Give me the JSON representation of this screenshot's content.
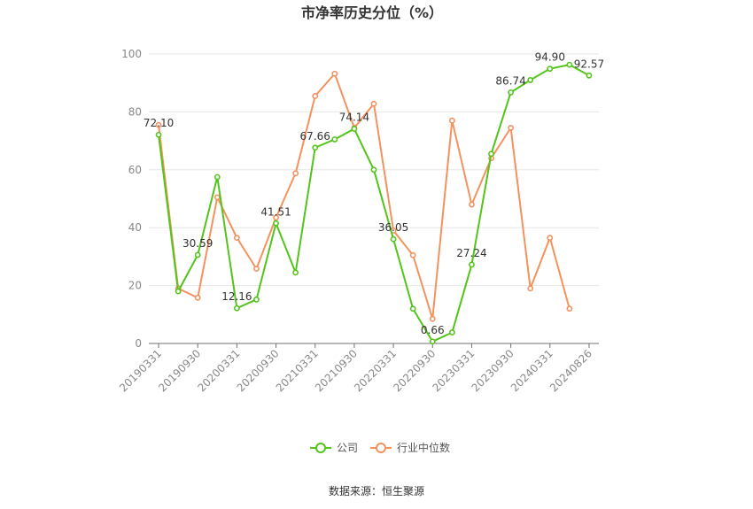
{
  "chart_data": {
    "type": "line",
    "title": "市净率历史分位（%）",
    "source": "数据来源：恒生聚源",
    "ylim": [
      0,
      100
    ],
    "yticks": [
      0,
      20,
      40,
      60,
      80,
      100
    ],
    "x": [
      "20190331",
      "20190630",
      "20190930",
      "20191231",
      "20200331",
      "20200630",
      "20200930",
      "20201231",
      "20210331",
      "20210630",
      "20210930",
      "20211231",
      "20220331",
      "20220630",
      "20220930",
      "20221231",
      "20230331",
      "20230630",
      "20230930",
      "20231231",
      "20240331",
      "20240630",
      "20240826"
    ],
    "xtick_labels": [
      "20190331",
      "20190930",
      "20200331",
      "20200930",
      "20210331",
      "20210930",
      "20220331",
      "20220930",
      "20230331",
      "20230930",
      "20240331",
      "20240826"
    ],
    "grid": true,
    "legend_position": "bottom",
    "series": [
      {
        "name": "公司",
        "color": "#52c41a",
        "values": [
          72.1,
          18.0,
          30.59,
          57.5,
          12.16,
          15.2,
          41.51,
          24.5,
          67.66,
          70.5,
          74.14,
          60.0,
          36.05,
          12.0,
          0.66,
          3.8,
          27.24,
          65.5,
          86.74,
          91.0,
          94.9,
          96.3,
          92.57
        ],
        "labels": [
          "72.10",
          "",
          "30.59",
          "",
          "12.16",
          "",
          "41.51",
          "",
          "67.66",
          "",
          "74.14",
          "",
          "36.05",
          "",
          "0.66",
          "",
          "27.24",
          "",
          "86.74",
          "",
          "94.90",
          "",
          "92.57"
        ]
      },
      {
        "name": "行业中位数",
        "color": "#f4925e",
        "values": [
          75.5,
          19.0,
          15.8,
          50.5,
          36.5,
          25.8,
          43.5,
          58.8,
          85.5,
          93.2,
          74.5,
          82.8,
          39.0,
          30.5,
          8.5,
          77.0,
          48.0,
          64.0,
          74.5,
          19.0,
          36.5,
          12.0,
          null
        ],
        "labels": []
      }
    ]
  }
}
